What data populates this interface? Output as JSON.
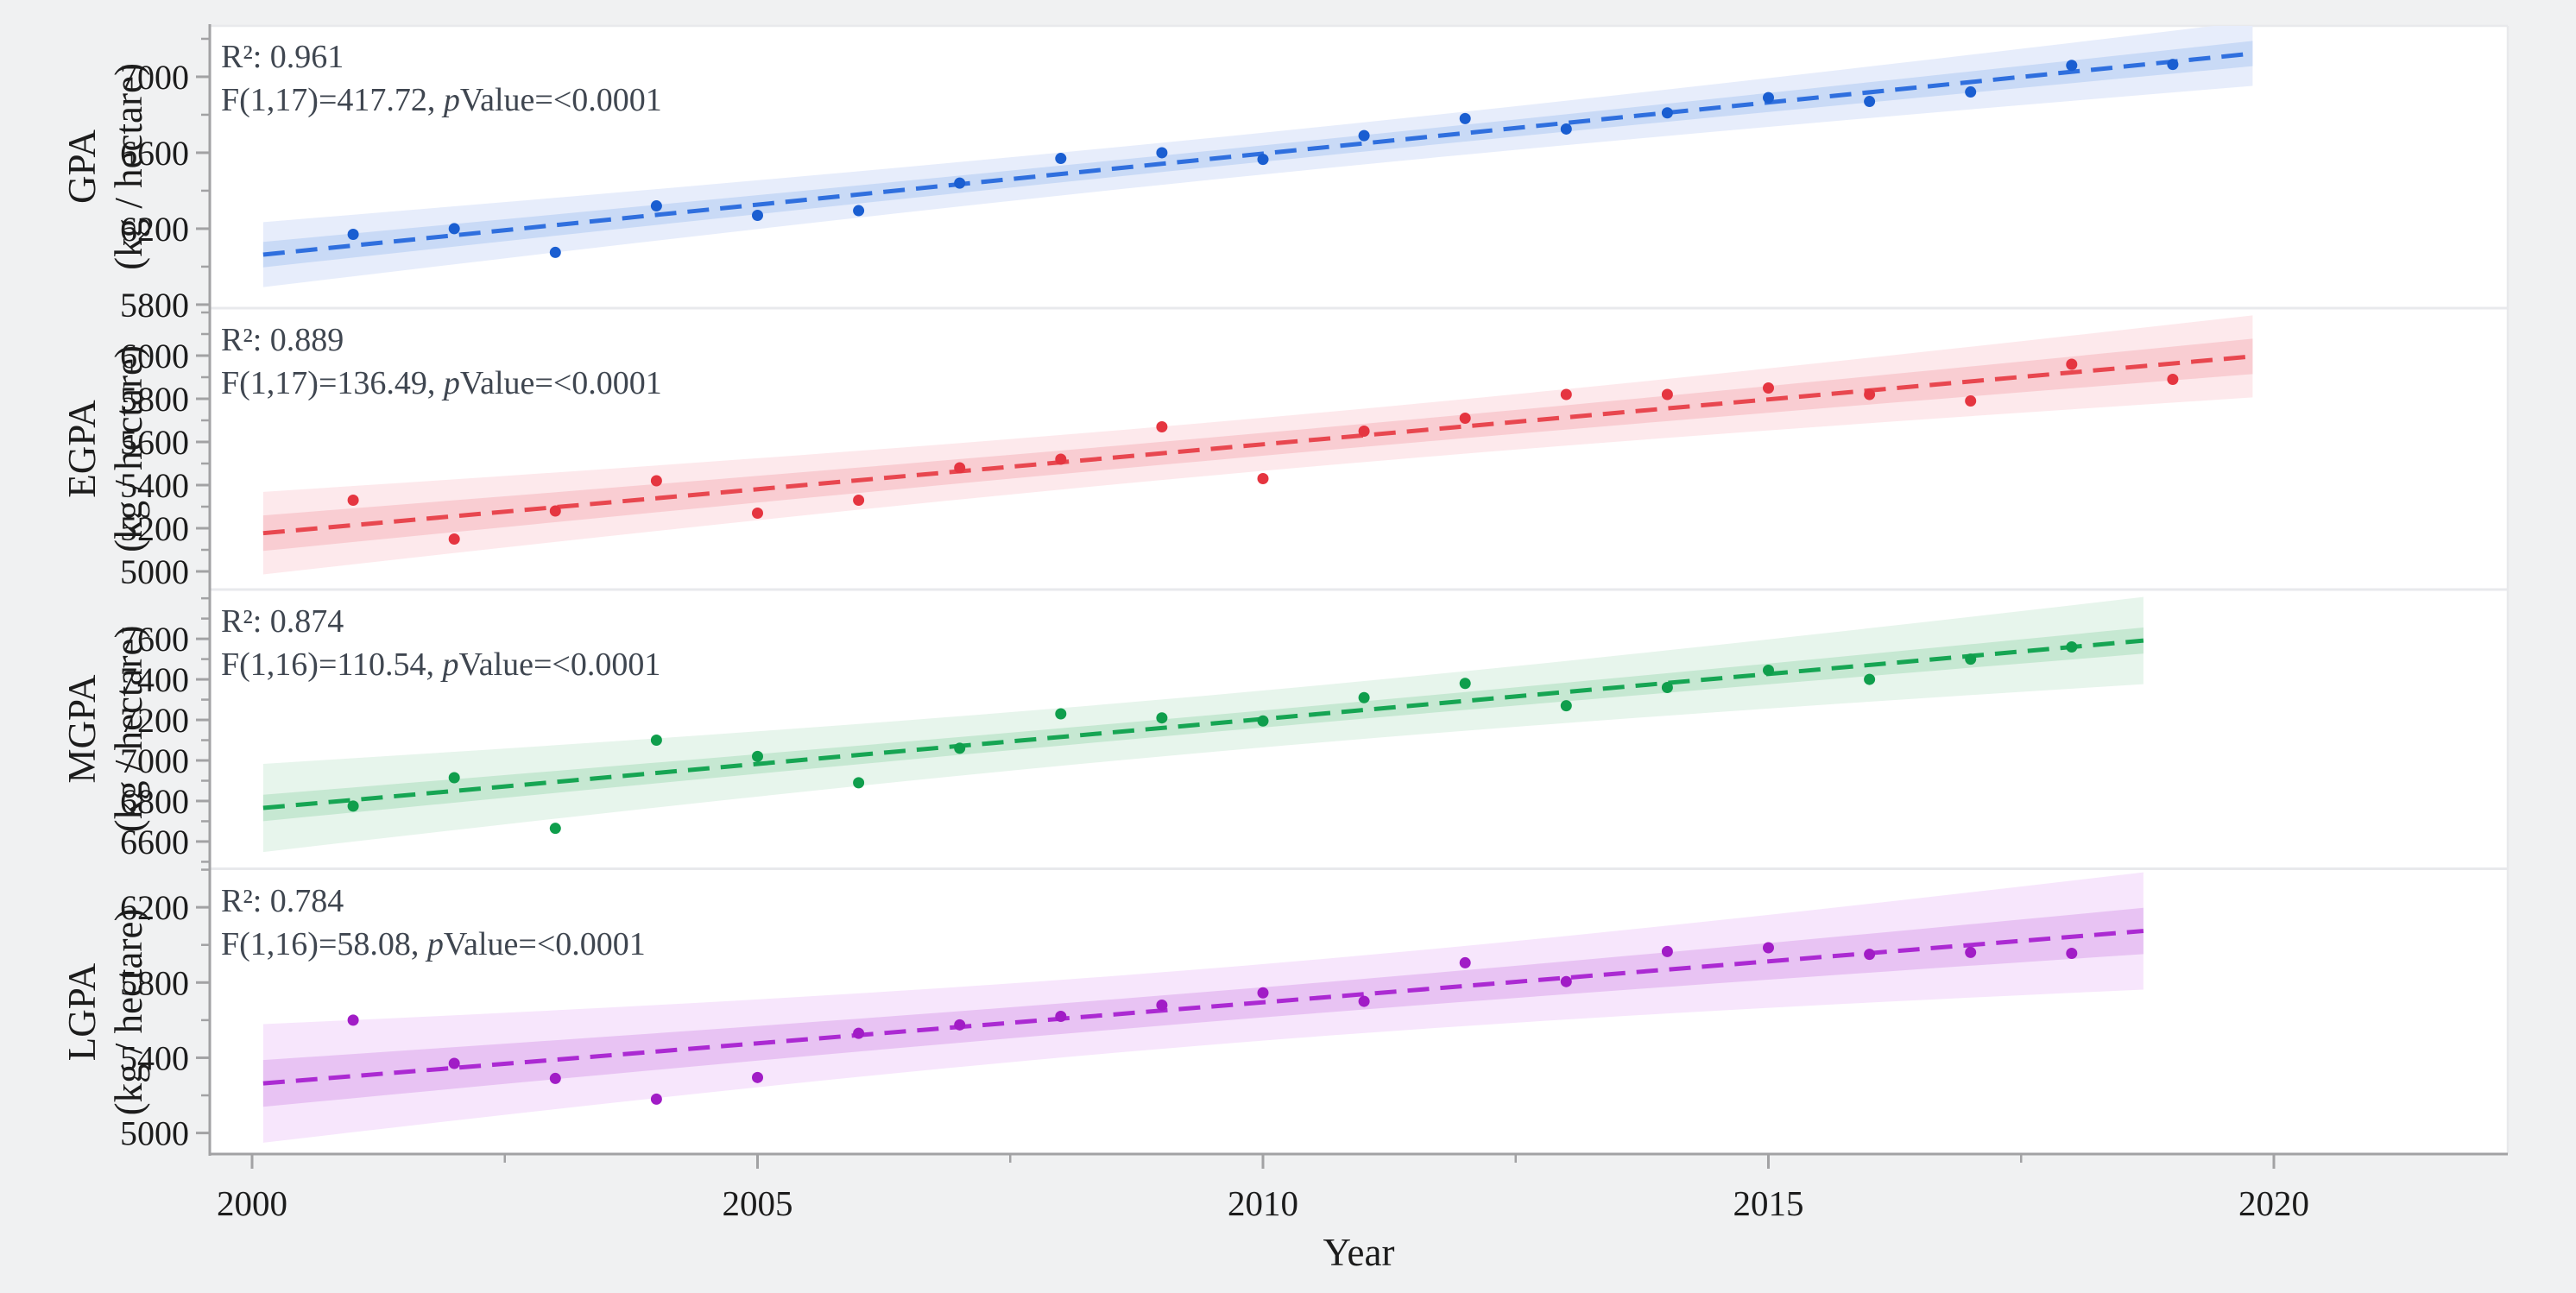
{
  "figure": {
    "background": "#f0f1f2",
    "plot_background": "#ffffff",
    "axis_color": "#a2a2a4",
    "panel_border_color": "#e8e9ec",
    "text_color": "#1c1c1c",
    "annotation_color": "#3f4650"
  },
  "chart_data": {
    "type": "scatter",
    "description": "Four stacked scatter panels with linear regression trend lines and confidence bands versus Year",
    "x": {
      "label": "Year",
      "lim": [
        1999.58,
        2022.31
      ],
      "major_ticks": [
        2000,
        2005,
        2010,
        2015,
        2020
      ],
      "minor_ticks": [
        2002.5,
        2007.5,
        2012.5,
        2017.5
      ]
    },
    "panels": [
      {
        "name": "GPA",
        "axis_title": "GPA",
        "axis_unit": "(kg / hectare)",
        "stats": {
          "r2": "R²: 0.961",
          "f_pre": "F(1,17)=417.72, ",
          "p": "p",
          "f_post": "Value=<0.0001"
        },
        "ylim": [
          5786,
          7268
        ],
        "yticks_major": [
          5800,
          6200,
          6600,
          7000
        ],
        "yticks_minor": [
          6000,
          6400,
          6800,
          7200
        ],
        "trend_range": [
          2000.11,
          2019.79
        ],
        "band": {
          "inner_mid": 43,
          "outer_mid": 110,
          "spread": 8.3
        },
        "colors": {
          "line": "#2f6fde",
          "point": "#1a5ed1",
          "band_inner": "#c9daf6",
          "band_outer": "#e7edfb"
        },
        "years": [
          2001,
          2002,
          2003,
          2004,
          2005,
          2006,
          2007,
          2008,
          2009,
          2010,
          2011,
          2012,
          2013,
          2014,
          2015,
          2016,
          2017,
          2018,
          2019
        ],
        "values": [
          6170,
          6200,
          6075,
          6320,
          6270,
          6295,
          6440,
          6570,
          6600,
          6565,
          6690,
          6780,
          6725,
          6810,
          6890,
          6870,
          6920,
          7060,
          7065
        ]
      },
      {
        "name": "EGPA",
        "axis_title": "EGPA",
        "axis_unit": "(kg / hectare)",
        "stats": {
          "r2": "R²: 0.889",
          "f_pre": "F(1,17)=136.49, ",
          "p": "p",
          "f_post": "Value=<0.0001"
        },
        "ylim": [
          4920,
          6216
        ],
        "yticks_major": [
          5000,
          5200,
          5400,
          5600,
          5800,
          6000
        ],
        "yticks_minor": [
          5100,
          5300,
          5500,
          5700,
          5900,
          6100,
          6200
        ],
        "trend_range": [
          2000.11,
          2019.79
        ],
        "band": {
          "inner_mid": 53,
          "outer_mid": 123,
          "spread": 8.3
        },
        "colors": {
          "line": "#e8474f",
          "point": "#e53540",
          "band_inner": "#f9cdd2",
          "band_outer": "#fde9ec"
        },
        "years": [
          2001,
          2002,
          2003,
          2004,
          2005,
          2006,
          2007,
          2008,
          2009,
          2010,
          2011,
          2012,
          2013,
          2014,
          2015,
          2016,
          2017,
          2018,
          2019
        ],
        "values": [
          5330,
          5150,
          5280,
          5420,
          5270,
          5330,
          5480,
          5520,
          5670,
          5430,
          5650,
          5710,
          5820,
          5820,
          5850,
          5820,
          5790,
          5960,
          5890
        ]
      },
      {
        "name": "MGPA",
        "axis_title": "MGPA",
        "axis_unit": "(kg / hectare)",
        "stats": {
          "r2": "R²: 0.874",
          "f_pre": "F(1,16)=110.54, ",
          "p": "p",
          "f_post": "Value=<0.0001"
        },
        "ylim": [
          6472,
          7839
        ],
        "yticks_major": [
          6600,
          6800,
          7000,
          7200,
          7400,
          7600
        ],
        "yticks_minor": [
          6500,
          6700,
          6900,
          7100,
          7300,
          7500,
          7700,
          7800
        ],
        "trend_range": [
          2000.11,
          2018.71
        ],
        "band": {
          "inner_mid": 42,
          "outer_mid": 140,
          "spread": 7.9
        },
        "colors": {
          "line": "#16a553",
          "point": "#0f9e4c",
          "band_inner": "#c6e8d2",
          "band_outer": "#e7f5ec"
        },
        "years": [
          2001,
          2002,
          2003,
          2004,
          2005,
          2006,
          2007,
          2008,
          2009,
          2010,
          2011,
          2012,
          2013,
          2014,
          2015,
          2016,
          2017,
          2018
        ],
        "values": [
          6775,
          6915,
          6665,
          7100,
          7020,
          6890,
          7060,
          7230,
          7210,
          7195,
          7310,
          7380,
          7270,
          7360,
          7445,
          7400,
          7500,
          7560
        ]
      },
      {
        "name": "LGPA",
        "axis_title": "LGPA",
        "axis_unit": "(kg / hectare)",
        "stats": {
          "r2": "R²: 0.784",
          "f_pre": "F(1,16)=58.08, ",
          "p": "p",
          "f_post": "Value=<0.0001"
        },
        "ylim": [
          4888,
          6398
        ],
        "yticks_major": [
          5000,
          5400,
          5800,
          6200
        ],
        "yticks_minor": [
          5200,
          5600,
          6000,
          6400
        ],
        "trend_range": [
          2000.11,
          2018.71
        ],
        "band": {
          "inner_mid": 80,
          "outer_mid": 203,
          "spread": 7.9
        },
        "colors": {
          "line": "#ab2ad2",
          "point": "#a11cc6",
          "band_inner": "#e8c3f3",
          "band_outer": "#f7e6fc"
        },
        "years": [
          2001,
          2002,
          2003,
          2004,
          2005,
          2006,
          2007,
          2008,
          2009,
          2010,
          2011,
          2012,
          2013,
          2014,
          2015,
          2016,
          2017,
          2018
        ],
        "values": [
          5600,
          5370,
          5290,
          5180,
          5295,
          5530,
          5575,
          5620,
          5680,
          5745,
          5700,
          5905,
          5805,
          5965,
          5985,
          5950,
          5960,
          5955
        ]
      }
    ]
  }
}
